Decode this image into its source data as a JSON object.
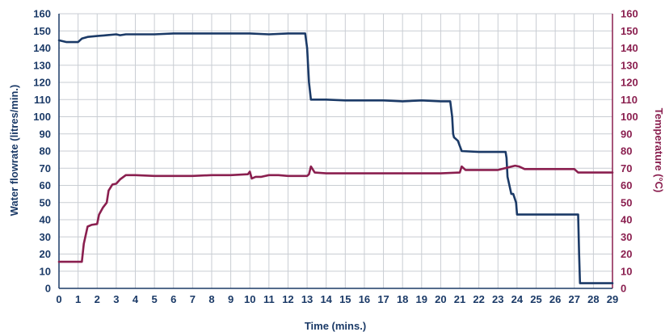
{
  "chart_data": {
    "type": "line",
    "xlabel": "Time (mins.)",
    "ylabel_left": "Water flowrate (litres/min.)",
    "ylabel_right": "Temperature (°C)",
    "xlim": [
      0,
      29
    ],
    "ylim_left": [
      0,
      160
    ],
    "ylim_right": [
      0,
      160
    ],
    "x_ticks": [
      "0",
      "1",
      "2",
      "3",
      "4",
      "5",
      "6",
      "7",
      "8",
      "9",
      "10",
      "11",
      "12",
      "13",
      "14",
      "15",
      "16",
      "17",
      "18",
      "19",
      "20",
      "21",
      "22",
      "23",
      "24",
      "25",
      "26",
      "27",
      "28",
      "29"
    ],
    "y_ticks_left": [
      "0",
      "10",
      "20",
      "30",
      "40",
      "50",
      "60",
      "70",
      "80",
      "90",
      "100",
      "110",
      "120",
      "130",
      "140",
      "150",
      "160"
    ],
    "y_ticks_right": [
      "0",
      "10",
      "20",
      "30",
      "40",
      "50",
      "60",
      "70",
      "80",
      "90",
      "100",
      "110",
      "120",
      "130",
      "140",
      "150",
      "160"
    ],
    "grid": true,
    "colors": {
      "flowrate": "#1b3a67",
      "temperature": "#8a1f4f",
      "grid": "#c9cdd3",
      "axis": "#1b3a67"
    },
    "series": [
      {
        "axis": "left",
        "x": [
          0,
          0.4,
          1.0,
          1.2,
          1.5,
          2.0,
          2.5,
          3.0,
          3.2,
          3.5,
          4.0,
          5.0,
          6.0,
          7.0,
          8.0,
          9.0,
          10.0,
          11.0,
          12.0,
          12.9,
          13.0,
          13.1,
          13.2,
          14.0,
          15.0,
          16.0,
          17.0,
          18.0,
          19.0,
          20.0,
          20.5,
          20.6,
          20.65,
          20.7,
          20.9,
          21.0,
          21.1,
          22.0,
          23.0,
          23.4,
          23.45,
          23.5,
          23.7,
          23.8,
          23.95,
          24.0,
          24.1,
          25.0,
          26.0,
          27.0,
          27.2,
          27.25,
          27.3,
          28.0,
          29.0
        ],
        "values": [
          144.5,
          143.5,
          143.5,
          145.5,
          146.5,
          147,
          147.5,
          148,
          147.5,
          148,
          148,
          148,
          148.5,
          148.5,
          148.5,
          148.5,
          148.5,
          148,
          148.5,
          148.5,
          140,
          120,
          110,
          110,
          109.5,
          109.5,
          109.5,
          109,
          109.5,
          109,
          109,
          100,
          90,
          88,
          86,
          83,
          80,
          79.5,
          79.5,
          79.5,
          76,
          65,
          55,
          55,
          50,
          43,
          43,
          43,
          43,
          43,
          43,
          20,
          3,
          3,
          3
        ]
      },
      {
        "axis": "right",
        "x": [
          0,
          1.2,
          1.3,
          1.5,
          1.7,
          2.0,
          2.1,
          2.3,
          2.5,
          2.6,
          2.8,
          3.0,
          3.2,
          3.5,
          4.0,
          5.0,
          6.0,
          7.0,
          8.0,
          9.0,
          9.9,
          10.0,
          10.1,
          10.3,
          10.6,
          11.0,
          11.5,
          12.0,
          13.0,
          13.1,
          13.2,
          13.4,
          14.0,
          15.0,
          16.0,
          17.0,
          18.0,
          19.0,
          20.0,
          21.0,
          21.1,
          21.3,
          22.0,
          23.0,
          23.9,
          24.1,
          24.4,
          25.0,
          26.0,
          27.0,
          27.2,
          28.0,
          29.0
        ],
        "values": [
          15.5,
          15.5,
          26,
          36,
          37,
          37.5,
          43,
          47,
          50,
          57,
          60.5,
          61,
          63.5,
          66,
          66,
          65.5,
          65.5,
          65.5,
          66,
          66,
          66.5,
          68,
          64,
          65,
          65,
          66,
          66,
          65.5,
          65.5,
          66.5,
          71,
          67.5,
          67,
          67,
          67,
          67,
          67,
          67,
          67,
          67.5,
          71,
          69,
          69,
          69,
          71.5,
          71,
          69.5,
          69.5,
          69.5,
          69.5,
          67.5,
          67.5,
          67.5
        ]
      }
    ]
  }
}
